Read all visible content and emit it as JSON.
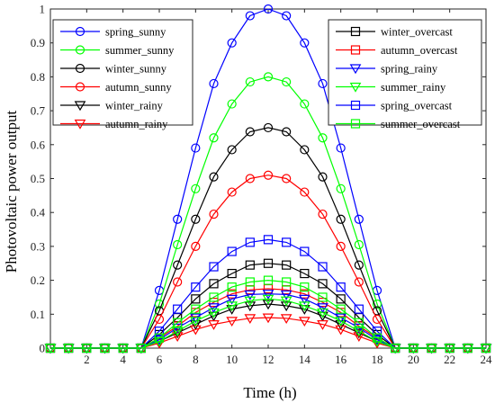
{
  "chart_data": {
    "type": "line",
    "xlabel": "Time (h)",
    "ylabel": "Photovoltaic power  output",
    "xlim": [
      0,
      24
    ],
    "ylim": [
      0,
      1
    ],
    "xticks": [
      "2",
      "4",
      "6",
      "8",
      "10",
      "12",
      "14",
      "16",
      "18",
      "20",
      "22",
      "24"
    ],
    "yticks": [
      "0",
      "0.1",
      "0.2",
      "0.3",
      "0.4",
      "0.5",
      "0.6",
      "0.7",
      "0.8",
      "0.9",
      "1"
    ],
    "grid": false,
    "legends": [
      {
        "placement": "top-left",
        "entries": [
          "spring_sunny",
          "summer_sunny",
          "winter_sunny",
          "autumn_sunny",
          "winter_rainy",
          "autumn_rainy"
        ]
      },
      {
        "placement": "top-right",
        "entries": [
          "winter_overcast",
          "autumn_overcast",
          "spring_rainy",
          "summer_rainy",
          "spring_overcast",
          "summer_overcast"
        ]
      }
    ],
    "x": [
      0,
      1,
      2,
      3,
      4,
      5,
      6,
      7,
      8,
      9,
      10,
      11,
      12,
      13,
      14,
      15,
      16,
      17,
      18,
      19,
      20,
      21,
      22,
      23,
      24
    ],
    "series": [
      {
        "name": "spring_sunny",
        "color": "#0000ff",
        "marker": "circle",
        "values": [
          0,
          0,
          0,
          0,
          0,
          0,
          0.17,
          0.38,
          0.59,
          0.78,
          0.9,
          0.98,
          1.0,
          0.98,
          0.9,
          0.78,
          0.59,
          0.38,
          0.17,
          0,
          0,
          0,
          0,
          0,
          0
        ]
      },
      {
        "name": "summer_sunny",
        "color": "#00ff00",
        "marker": "circle",
        "values": [
          0,
          0,
          0,
          0,
          0,
          0,
          0.13,
          0.305,
          0.47,
          0.62,
          0.72,
          0.785,
          0.8,
          0.785,
          0.72,
          0.62,
          0.47,
          0.305,
          0.13,
          0,
          0,
          0,
          0,
          0,
          0
        ]
      },
      {
        "name": "winter_sunny",
        "color": "#000000",
        "marker": "circle",
        "values": [
          0,
          0,
          0,
          0,
          0,
          0,
          0.11,
          0.245,
          0.38,
          0.505,
          0.585,
          0.638,
          0.65,
          0.638,
          0.585,
          0.505,
          0.38,
          0.245,
          0.11,
          0,
          0,
          0,
          0,
          0,
          0
        ]
      },
      {
        "name": "autumn_sunny",
        "color": "#ff0000",
        "marker": "circle",
        "values": [
          0,
          0,
          0,
          0,
          0,
          0,
          0.085,
          0.195,
          0.3,
          0.395,
          0.46,
          0.5,
          0.51,
          0.5,
          0.46,
          0.395,
          0.3,
          0.195,
          0.085,
          0,
          0,
          0,
          0,
          0,
          0
        ]
      },
      {
        "name": "winter_rainy",
        "color": "#000000",
        "marker": "triangle-down",
        "values": [
          0,
          0,
          0,
          0,
          0,
          0,
          0.02,
          0.045,
          0.07,
          0.095,
          0.115,
          0.125,
          0.13,
          0.125,
          0.115,
          0.095,
          0.07,
          0.045,
          0.02,
          0,
          0,
          0,
          0,
          0,
          0
        ]
      },
      {
        "name": "autumn_rainy",
        "color": "#ff0000",
        "marker": "triangle-down",
        "values": [
          0,
          0,
          0,
          0,
          0,
          0,
          0.015,
          0.035,
          0.055,
          0.07,
          0.08,
          0.088,
          0.09,
          0.088,
          0.08,
          0.07,
          0.055,
          0.035,
          0.015,
          0,
          0,
          0,
          0,
          0,
          0
        ]
      },
      {
        "name": "winter_overcast",
        "color": "#000000",
        "marker": "square",
        "values": [
          0,
          0,
          0,
          0,
          0,
          0,
          0.04,
          0.09,
          0.145,
          0.19,
          0.22,
          0.245,
          0.25,
          0.245,
          0.22,
          0.19,
          0.145,
          0.09,
          0.04,
          0,
          0,
          0,
          0,
          0,
          0
        ]
      },
      {
        "name": "autumn_overcast",
        "color": "#ff0000",
        "marker": "square",
        "values": [
          0,
          0,
          0,
          0,
          0,
          0,
          0.03,
          0.065,
          0.105,
          0.135,
          0.16,
          0.172,
          0.175,
          0.172,
          0.16,
          0.135,
          0.105,
          0.065,
          0.03,
          0,
          0,
          0,
          0,
          0,
          0
        ]
      },
      {
        "name": "spring_rainy",
        "color": "#0000ff",
        "marker": "triangle-down",
        "values": [
          0,
          0,
          0,
          0,
          0,
          0,
          0.025,
          0.06,
          0.09,
          0.12,
          0.145,
          0.158,
          0.16,
          0.158,
          0.145,
          0.12,
          0.09,
          0.06,
          0.025,
          0,
          0,
          0,
          0,
          0,
          0
        ]
      },
      {
        "name": "summer_rainy",
        "color": "#00ff00",
        "marker": "triangle-down",
        "values": [
          0,
          0,
          0,
          0,
          0,
          0,
          0.02,
          0.05,
          0.08,
          0.105,
          0.125,
          0.14,
          0.145,
          0.14,
          0.125,
          0.105,
          0.08,
          0.05,
          0.02,
          0,
          0,
          0,
          0,
          0,
          0
        ]
      },
      {
        "name": "spring_overcast",
        "color": "#0000ff",
        "marker": "square",
        "values": [
          0,
          0,
          0,
          0,
          0,
          0,
          0.05,
          0.115,
          0.18,
          0.24,
          0.285,
          0.312,
          0.32,
          0.312,
          0.285,
          0.24,
          0.18,
          0.115,
          0.05,
          0,
          0,
          0,
          0,
          0,
          0
        ]
      },
      {
        "name": "summer_overcast",
        "color": "#00ff00",
        "marker": "square",
        "values": [
          0,
          0,
          0,
          0,
          0,
          0,
          0.03,
          0.075,
          0.115,
          0.15,
          0.18,
          0.195,
          0.2,
          0.195,
          0.18,
          0.15,
          0.115,
          0.075,
          0.03,
          0,
          0,
          0,
          0,
          0,
          0
        ]
      }
    ]
  }
}
